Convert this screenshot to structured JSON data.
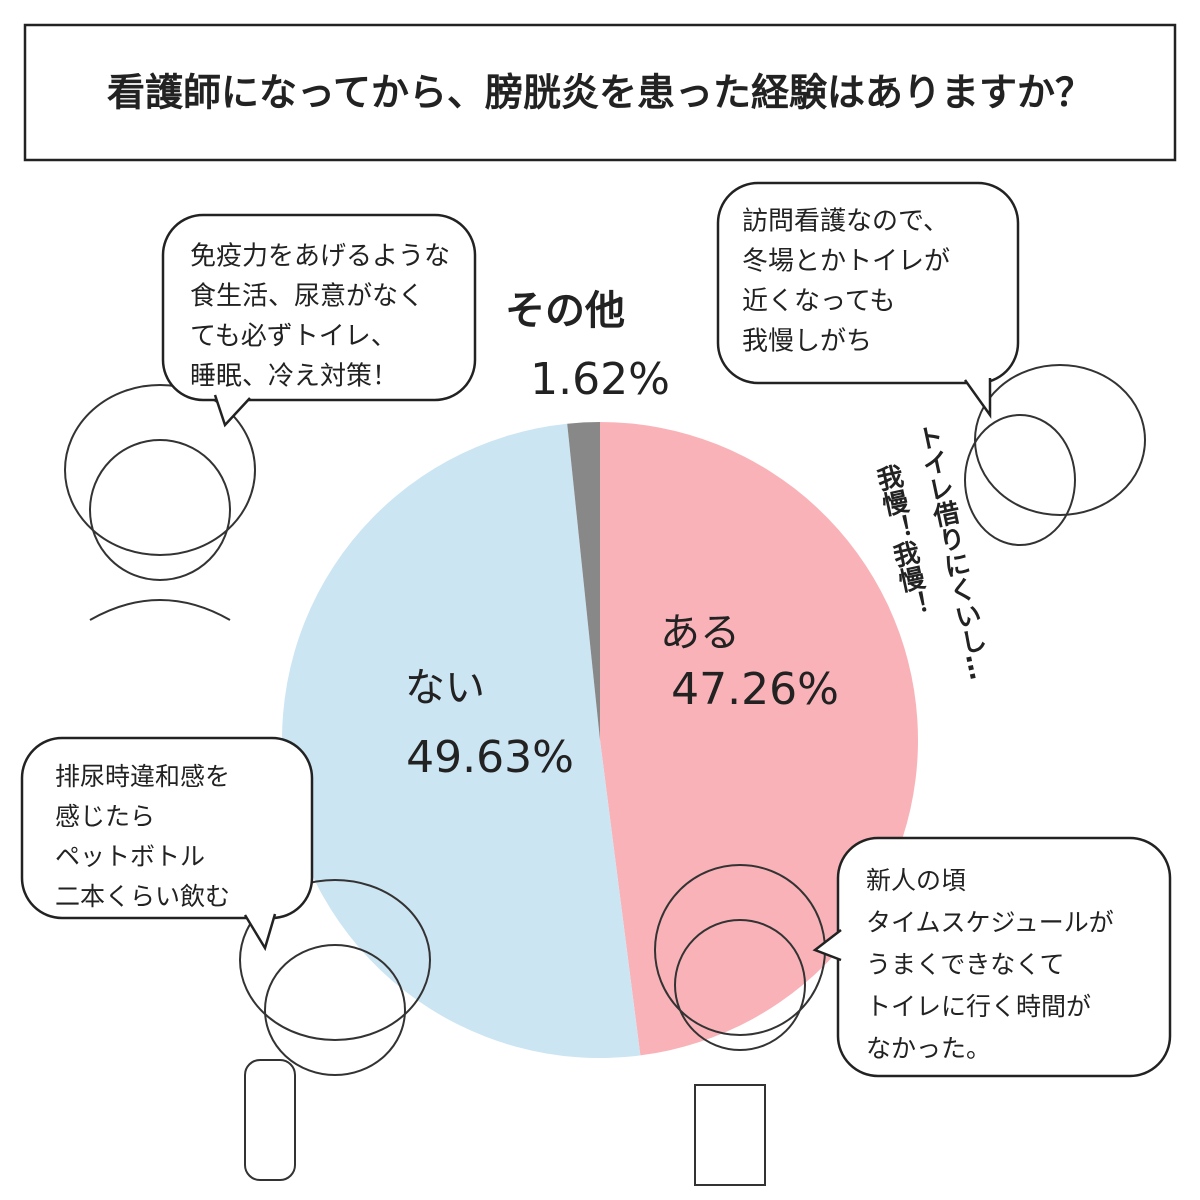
{
  "chart_data": {
    "type": "pie",
    "title": "看護師になってから、膀胱炎を患った経験はありますか？",
    "categories": [
      "ある",
      "ない",
      "その他"
    ],
    "values": [
      47.26,
      49.63,
      1.62
    ],
    "value_labels": [
      "47.26%",
      "49.63%",
      "1.62%"
    ],
    "colors": [
      "#f9b3b8",
      "#cce5f2",
      "#888888"
    ],
    "annotations": [
      {
        "lines": [
          "免疫力をあげるような",
          "食生活、尿意がなく",
          "ても必ずトイレ、",
          "睡眠、冷え対策！"
        ]
      },
      {
        "lines": [
          "訪問看護なので、",
          "冬場とかトイレが",
          "近くなっても",
          "我慢しがち"
        ]
      },
      {
        "lines": [
          "排尿時違和感を",
          "感じたら",
          "ペットボトル",
          "二本くらい飲む"
        ]
      },
      {
        "lines": [
          "新人の頃",
          "タイムスケジュールが",
          "うまくできなくて",
          "トイレに行く時間が",
          "なかった。"
        ]
      }
    ],
    "side_notes": [
      "トイレ借りにくいし…",
      "我慢！我慢！"
    ]
  }
}
